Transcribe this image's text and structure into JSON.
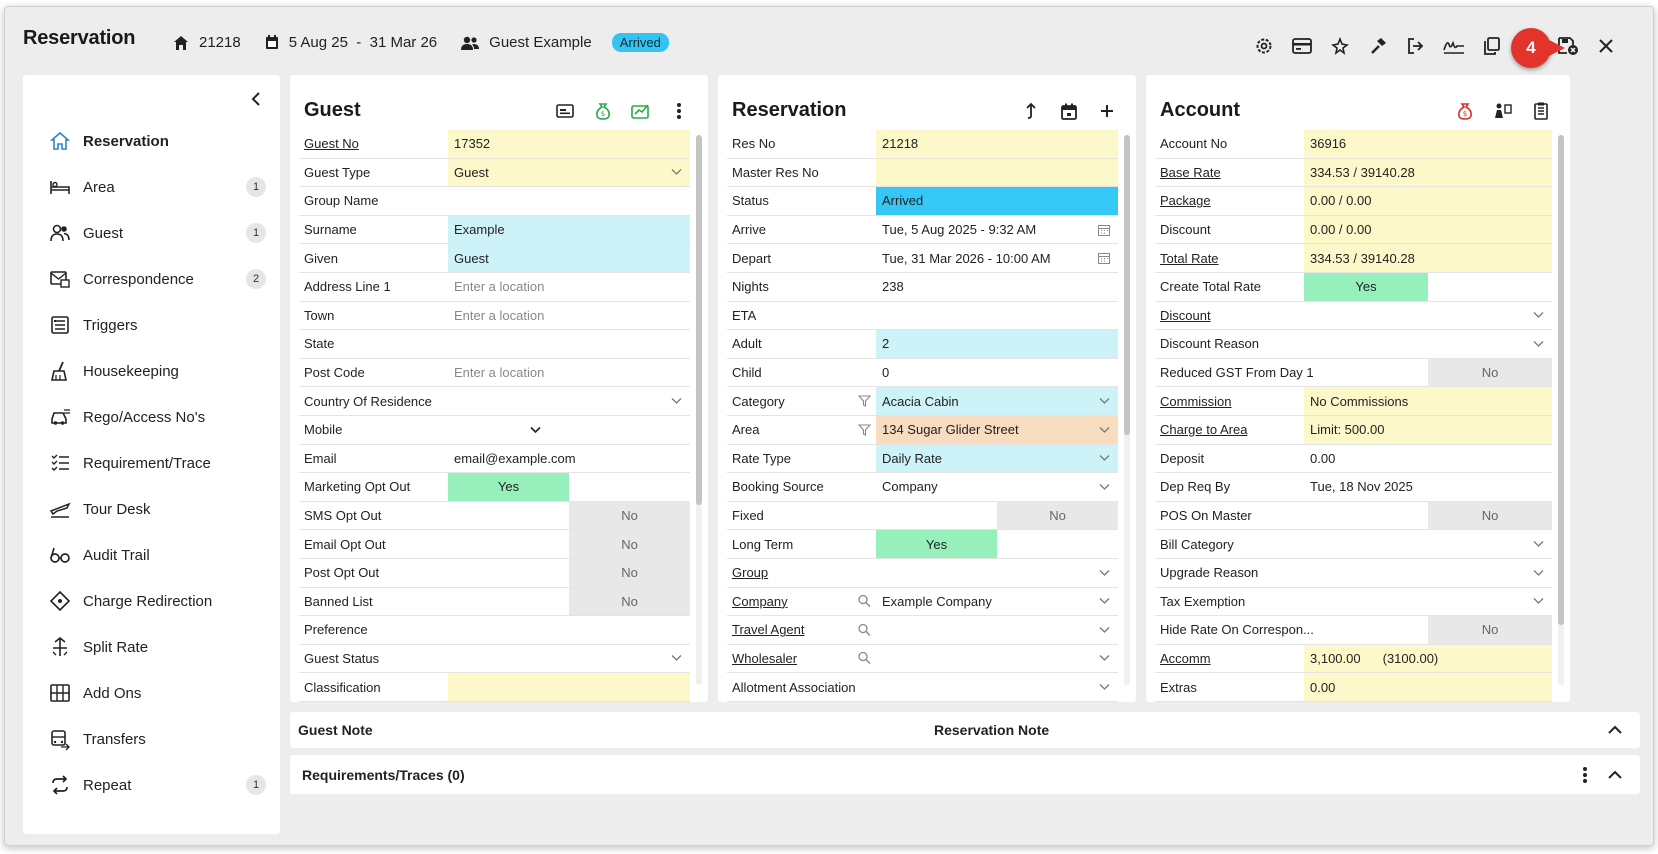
{
  "header": {
    "title": "Reservation",
    "res_no": "21218",
    "dates": "5 Aug 25  -  31 Mar 26",
    "guest": "Guest Example",
    "status": "Arrived",
    "callout": "4"
  },
  "colors": {
    "status_badge": "#35c3f2",
    "callout": "#e3342b",
    "yes": "#97f0bc",
    "yellow_field": "#fdf8c9",
    "cyan_field": "#cdf3f8"
  },
  "sidebar": {
    "items": [
      {
        "label": "Reservation",
        "icon": "home-icon",
        "count": ""
      },
      {
        "label": "Area",
        "icon": "bed-icon",
        "count": "1"
      },
      {
        "label": "Guest",
        "icon": "people-icon",
        "count": "1"
      },
      {
        "label": "Correspondence",
        "icon": "mail-icon",
        "count": "2"
      },
      {
        "label": "Triggers",
        "icon": "list-icon",
        "count": ""
      },
      {
        "label": "Housekeeping",
        "icon": "broom-icon",
        "count": ""
      },
      {
        "label": "Rego/Access No's",
        "icon": "car-icon",
        "count": ""
      },
      {
        "label": "Requirement/Trace",
        "icon": "checklist-icon",
        "count": ""
      },
      {
        "label": "Tour Desk",
        "icon": "plane-icon",
        "count": ""
      },
      {
        "label": "Audit Trail",
        "icon": "glasses-icon",
        "count": ""
      },
      {
        "label": "Charge Redirection",
        "icon": "diamond-icon",
        "count": ""
      },
      {
        "label": "Split Rate",
        "icon": "split-icon",
        "count": ""
      },
      {
        "label": "Add Ons",
        "icon": "grid-icon",
        "count": ""
      },
      {
        "label": "Transfers",
        "icon": "bus-icon",
        "count": ""
      },
      {
        "label": "Repeat",
        "icon": "repeat-icon",
        "count": "1"
      }
    ]
  },
  "guest_panel": {
    "title": "Guest",
    "rows": [
      {
        "label": "Guest No",
        "value": "17352"
      },
      {
        "label": "Guest Type",
        "value": "Guest"
      },
      {
        "label": "Group Name",
        "value": ""
      },
      {
        "label": "Surname",
        "value": "Example"
      },
      {
        "label": "Given",
        "value": "Guest"
      },
      {
        "label": "Address Line 1",
        "value": "Enter a location"
      },
      {
        "label": "Town",
        "value": "Enter a location"
      },
      {
        "label": "State",
        "value": ""
      },
      {
        "label": "Post Code",
        "value": "Enter a location"
      },
      {
        "label": "Country Of Residence",
        "value": ""
      },
      {
        "label": "Mobile",
        "value": ""
      },
      {
        "label": "Email",
        "value": "email@example.com"
      },
      {
        "label": "Marketing Opt Out",
        "value": "Yes"
      },
      {
        "label": "SMS Opt Out",
        "value": "No"
      },
      {
        "label": "Email Opt Out",
        "value": "No"
      },
      {
        "label": "Post Opt Out",
        "value": "No"
      },
      {
        "label": "Banned List",
        "value": "No"
      },
      {
        "label": "Preference",
        "value": ""
      },
      {
        "label": "Guest Status",
        "value": ""
      },
      {
        "label": "Classification",
        "value": ""
      }
    ]
  },
  "res_panel": {
    "title": "Reservation",
    "rows": [
      {
        "label": "Res No",
        "value": "21218"
      },
      {
        "label": "Master Res No",
        "value": ""
      },
      {
        "label": "Status",
        "value": "Arrived"
      },
      {
        "label": "Arrive",
        "value": "Tue, 5 Aug 2025 - 9:32 AM"
      },
      {
        "label": "Depart",
        "value": "Tue, 31 Mar 2026 - 10:00 AM"
      },
      {
        "label": "Nights",
        "value": "238"
      },
      {
        "label": "ETA",
        "value": ""
      },
      {
        "label": "Adult",
        "value": "2"
      },
      {
        "label": "Child",
        "value": "0"
      },
      {
        "label": "Category",
        "value": "Acacia Cabin"
      },
      {
        "label": "Area",
        "value": "134 Sugar Glider Street"
      },
      {
        "label": "Rate Type",
        "value": "Daily Rate"
      },
      {
        "label": "Booking Source",
        "value": "Company"
      },
      {
        "label": "Fixed",
        "value": "No"
      },
      {
        "label": "Long Term",
        "value": "Yes"
      },
      {
        "label": "Group",
        "value": ""
      },
      {
        "label": "Company",
        "value": "Example Company"
      },
      {
        "label": "Travel Agent",
        "value": ""
      },
      {
        "label": "Wholesaler",
        "value": ""
      },
      {
        "label": "Allotment Association",
        "value": ""
      }
    ]
  },
  "acct_panel": {
    "title": "Account",
    "rows": [
      {
        "label": "Account No",
        "value": "36916"
      },
      {
        "label": "Base Rate",
        "value": "334.53 / 39140.28"
      },
      {
        "label": "Package",
        "value": "0.00 / 0.00"
      },
      {
        "label": "Discount",
        "value": "0.00 / 0.00"
      },
      {
        "label": "Total Rate",
        "value": "334.53 / 39140.28"
      },
      {
        "label": "Create Total Rate",
        "value": "Yes"
      },
      {
        "label": "Discount",
        "value": ""
      },
      {
        "label": "Discount Reason",
        "value": ""
      },
      {
        "label": "Reduced GST From Day 1",
        "value": "No"
      },
      {
        "label": "Commission",
        "value": "No Commissions"
      },
      {
        "label": "Charge to Area",
        "value": "Limit: 500.00"
      },
      {
        "label": "Deposit",
        "value": "0.00"
      },
      {
        "label": "Dep Req By",
        "value": "Tue, 18 Nov 2025"
      },
      {
        "label": "POS On Master",
        "value": "No"
      },
      {
        "label": "Bill Category",
        "value": ""
      },
      {
        "label": "Upgrade Reason",
        "value": ""
      },
      {
        "label": "Tax Exemption",
        "value": ""
      },
      {
        "label": "Hide Rate On Correspon...",
        "value": "No"
      },
      {
        "label": "Accomm",
        "value": "3,100.00",
        "extra": "(3100.00)"
      },
      {
        "label": "Extras",
        "value": "0.00"
      }
    ]
  },
  "notes": {
    "guest_note": "Guest Note",
    "reservation_note": "Reservation Note",
    "requirements": "Requirements/Traces (0)"
  }
}
